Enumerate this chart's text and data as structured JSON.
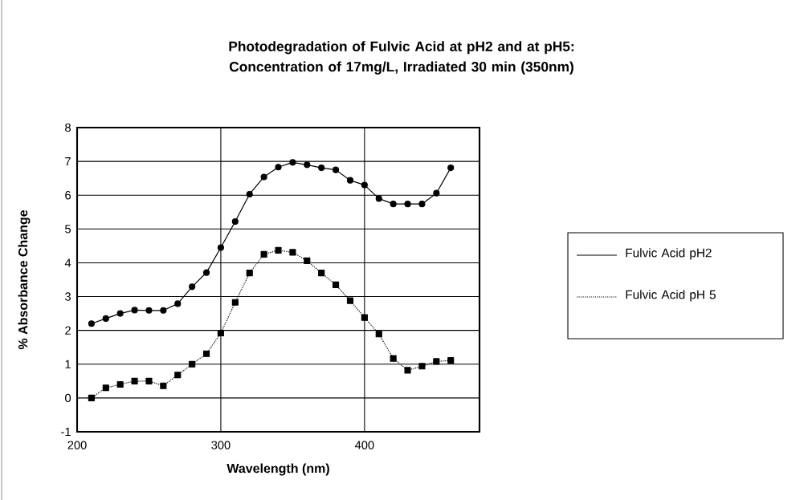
{
  "chart_data": {
    "type": "line",
    "title": "Photodegradation of Fulvic Acid at pH2 and at pH5: Concentration of 17mg/L, Irradiated 30 min (350nm)",
    "xlabel": "Wavelength (nm)",
    "ylabel": "% Absorbance Change",
    "xlim": [
      200,
      480
    ],
    "xticks": [
      200,
      300,
      400
    ],
    "ylim": [
      -1,
      8
    ],
    "yticks": [
      -1,
      0,
      1,
      2,
      3,
      4,
      5,
      6,
      7,
      8
    ],
    "grid": true,
    "legend": "right",
    "x": [
      210,
      220,
      230,
      240,
      250,
      260,
      270,
      280,
      290,
      300,
      310,
      320,
      330,
      340,
      350,
      360,
      370,
      380,
      390,
      400,
      410,
      420,
      430,
      440,
      450,
      460
    ],
    "series": [
      {
        "name": "Fulvic Acid pH2",
        "color": "#000000",
        "marker": "circle",
        "line_style": "solid",
        "values": [
          2.2,
          2.35,
          2.5,
          2.6,
          2.59,
          2.59,
          2.79,
          3.29,
          3.71,
          4.45,
          5.22,
          6.03,
          6.54,
          6.83,
          6.97,
          6.9,
          6.81,
          6.75,
          6.44,
          6.3,
          5.9,
          5.74,
          5.74,
          5.74,
          6.06,
          6.81
        ]
      },
      {
        "name": "Fulvic Acid pH 5",
        "color": "#000000",
        "marker": "square",
        "line_style": "dotted",
        "values": [
          0.0,
          0.3,
          0.4,
          0.5,
          0.5,
          0.36,
          0.68,
          1.0,
          1.31,
          1.92,
          2.83,
          3.7,
          4.25,
          4.37,
          4.31,
          4.06,
          3.7,
          3.35,
          2.88,
          2.38,
          1.89,
          1.17,
          0.82,
          0.94,
          1.08,
          1.11
        ]
      }
    ]
  }
}
